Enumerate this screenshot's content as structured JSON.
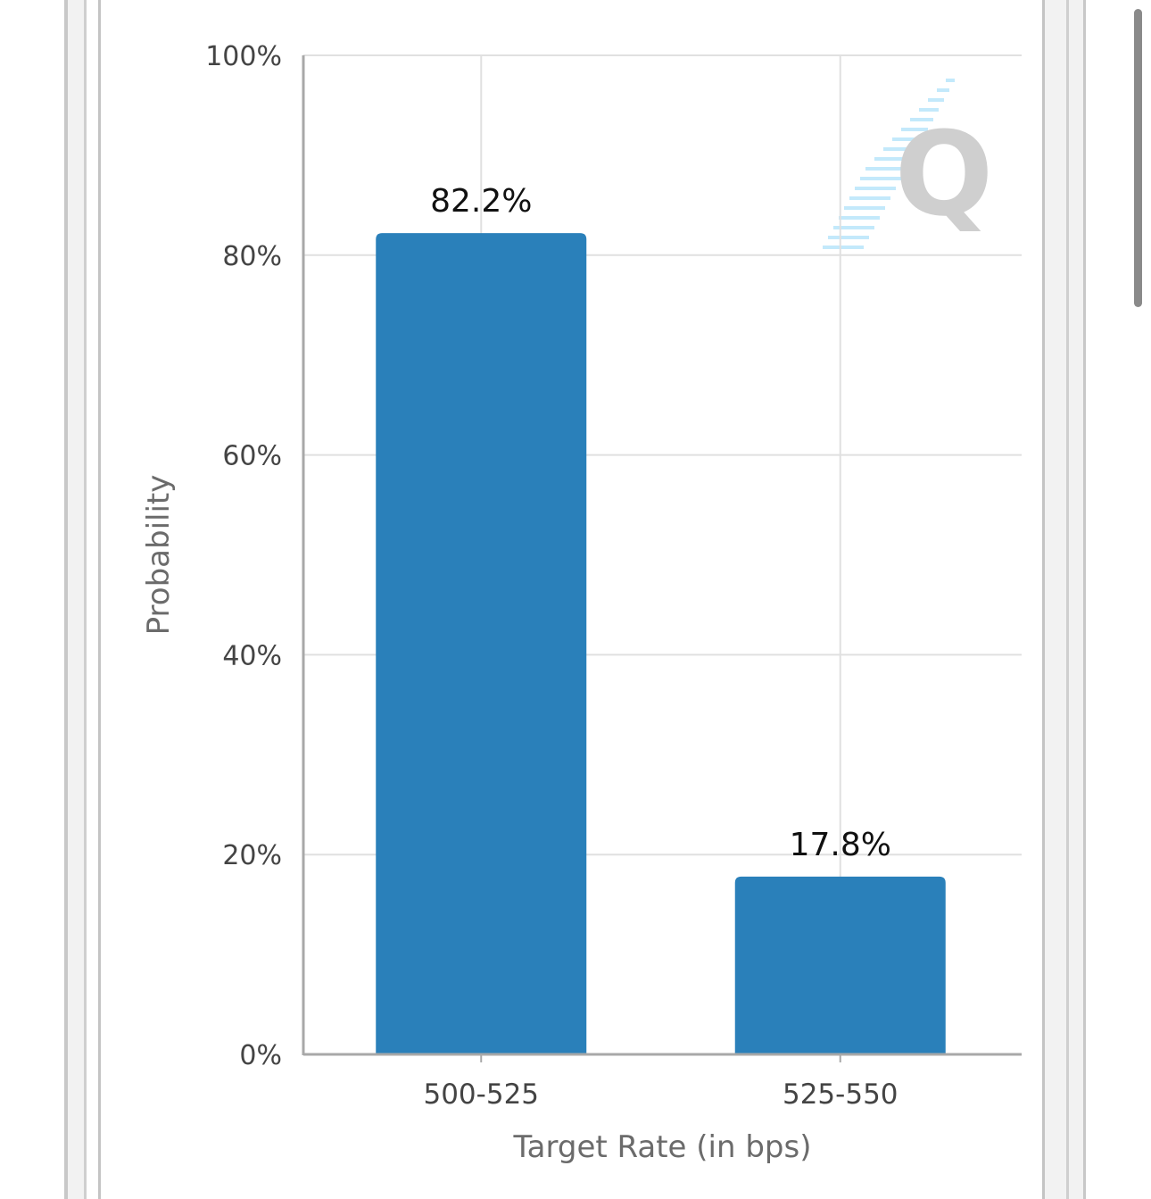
{
  "chart_data": {
    "type": "bar",
    "categories": [
      "500-525",
      "525-550"
    ],
    "values": [
      82.2,
      17.8
    ],
    "data_labels": [
      "82.2%",
      "17.8%"
    ],
    "title": "",
    "xlabel": "Target Rate (in bps)",
    "ylabel": "Probability",
    "ylim": [
      0,
      100
    ],
    "y_ticks": [
      0,
      20,
      40,
      60,
      80,
      100
    ],
    "y_tick_labels": [
      "0%",
      "20%",
      "40%",
      "60%",
      "80%",
      "100%"
    ],
    "grid": true,
    "legend": "none",
    "bar_color": "#2a80ba",
    "grid_color": "#e0e0e0",
    "axis_color": "#a8a8a8",
    "watermark": "Q"
  }
}
